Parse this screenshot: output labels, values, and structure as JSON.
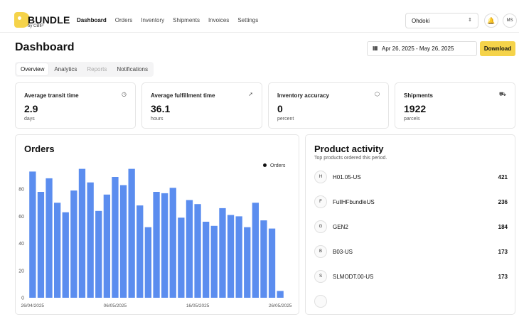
{
  "brand": {
    "name": "BUNDLE",
    "sub": "by CBIP"
  },
  "nav": [
    "Dashboard",
    "Orders",
    "Inventory",
    "Shipments",
    "Invoices",
    "Settings"
  ],
  "org": "Ohdoki",
  "user_initials": "MS",
  "page_title": "Dashboard",
  "date_range": "Apr 26, 2025 - May 26, 2025",
  "download_label": "Download",
  "tabs": [
    "Overview",
    "Analytics",
    "Reports",
    "Notifications"
  ],
  "stats": [
    {
      "label": "Average transit time",
      "value": "2.9",
      "unit": "days",
      "icon": "clock-icon"
    },
    {
      "label": "Average fulfillment time",
      "value": "36.1",
      "unit": "hours",
      "icon": "rocket-icon"
    },
    {
      "label": "Inventory accuracy",
      "value": "0",
      "unit": "percent",
      "icon": "box-icon"
    },
    {
      "label": "Shipments",
      "value": "1922",
      "unit": "parcels",
      "icon": "truck-icon"
    }
  ],
  "orders_title": "Orders",
  "chart_data": {
    "type": "bar",
    "title": "Orders",
    "legend": "Orders",
    "legend_position": "top-right",
    "color": "#5b8def",
    "ylim": [
      0,
      100
    ],
    "yticks": [
      0,
      20,
      40,
      60,
      80
    ],
    "xtick_labels": [
      "26/04/2025",
      "06/05/2025",
      "16/05/2025",
      "26/05/2025"
    ],
    "values": [
      93,
      78,
      88,
      70,
      63,
      79,
      95,
      85,
      64,
      76,
      89,
      83,
      95,
      68,
      52,
      78,
      77,
      81,
      59,
      72,
      69,
      56,
      53,
      66,
      61,
      60,
      52,
      70,
      57,
      51,
      5
    ]
  },
  "product_activity": {
    "title": "Product activity",
    "subtitle": "Top products ordered this period.",
    "items": [
      {
        "initial": "H",
        "name": "H01.05-US",
        "qty": "421"
      },
      {
        "initial": "F",
        "name": "FullHFbundleUS",
        "qty": "236"
      },
      {
        "initial": "G",
        "name": "GEN2",
        "qty": "184"
      },
      {
        "initial": "B",
        "name": "B03-US",
        "qty": "173"
      },
      {
        "initial": "S",
        "name": "SLMODT.00-US",
        "qty": "173"
      }
    ]
  }
}
